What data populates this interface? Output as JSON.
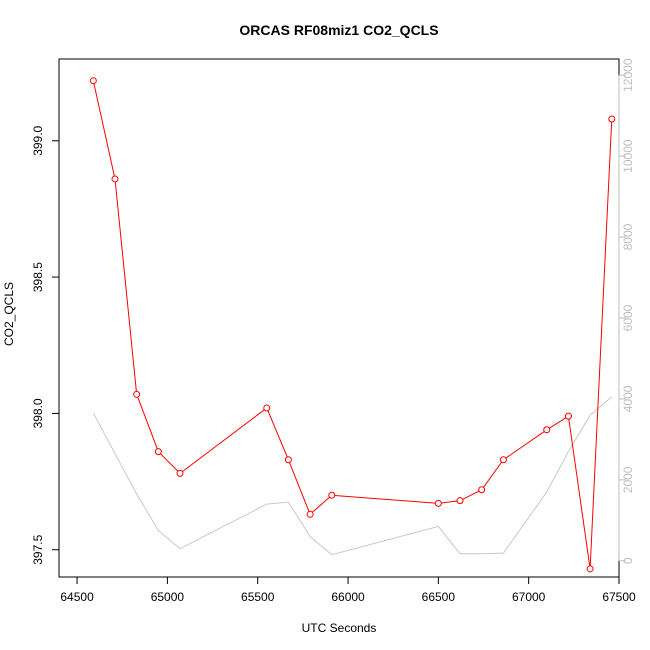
{
  "chart_data": {
    "type": "line",
    "title": "ORCAS RF08miz1 CO2_QCLS",
    "xlabel": "UTC Seconds",
    "ylabel": "CO2_QCLS",
    "xlim": [
      64400,
      67500
    ],
    "ylim": [
      397.4,
      399.3
    ],
    "y2lim": [
      -400,
      12400
    ],
    "x_ticks": [
      64500,
      65000,
      65500,
      66000,
      66500,
      67000,
      67500
    ],
    "y_ticks": [
      397.5,
      398.0,
      398.5,
      399.0
    ],
    "y2_ticks": [
      0,
      2000,
      4000,
      6000,
      8000,
      10000,
      12000
    ],
    "colors": {
      "series_main": "#ff0000",
      "series_secondary": "#c8c8c8",
      "axis": "#000000",
      "axis_right": "#bdbdbd"
    },
    "series": [
      {
        "axis": "left",
        "marker": "open-circle",
        "points": [
          [
            64590,
            399.22
          ],
          [
            64710,
            398.86
          ],
          [
            64830,
            398.07
          ],
          [
            64950,
            397.86
          ],
          [
            65070,
            397.78
          ],
          [
            65550,
            398.02
          ],
          [
            65670,
            397.83
          ],
          [
            65790,
            397.63
          ],
          [
            65910,
            397.7
          ],
          [
            66500,
            397.67
          ],
          [
            66620,
            397.68
          ],
          [
            66740,
            397.72
          ],
          [
            66860,
            397.83
          ],
          [
            67100,
            397.94
          ],
          [
            67220,
            397.99
          ],
          [
            67340,
            397.43
          ],
          [
            67460,
            399.08
          ]
        ]
      },
      {
        "axis": "right",
        "points": [
          [
            64590,
            3650
          ],
          [
            64710,
            2650
          ],
          [
            64830,
            1650
          ],
          [
            64950,
            750
          ],
          [
            65070,
            300
          ],
          [
            65550,
            1400
          ],
          [
            65670,
            1450
          ],
          [
            65790,
            600
          ],
          [
            65910,
            150
          ],
          [
            66500,
            850
          ],
          [
            66620,
            175
          ],
          [
            66740,
            175
          ],
          [
            66860,
            190
          ],
          [
            67100,
            1700
          ],
          [
            67220,
            2700
          ],
          [
            67340,
            3600
          ],
          [
            67460,
            4050
          ]
        ]
      }
    ]
  }
}
